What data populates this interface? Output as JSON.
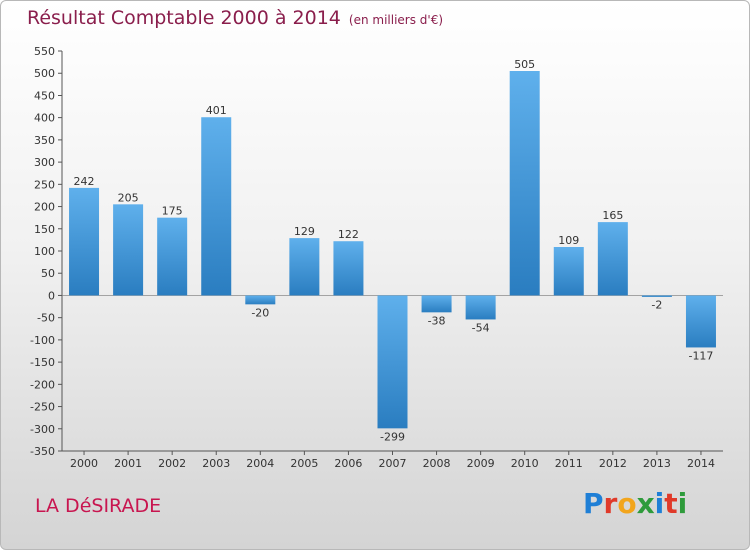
{
  "header": {
    "title": "Résultat Comptable 2000 à 2014",
    "subtitle": "(en milliers d'€)"
  },
  "footer": {
    "commune": "LA DéSIRADE",
    "logo_text": "Proxiti",
    "logo_colors": [
      "#1f7fd6",
      "#e03a2a",
      "#f2a51c",
      "#2e9b3b",
      "#1f7fd6",
      "#e03a2a",
      "#2e9b3b"
    ]
  },
  "chart_data": {
    "type": "bar",
    "title": "Résultat Comptable 2000 à 2014",
    "subtitle": "(en milliers d'€)",
    "xlabel": "",
    "ylabel": "",
    "categories": [
      "2000",
      "2001",
      "2002",
      "2003",
      "2004",
      "2005",
      "2006",
      "2007",
      "2008",
      "2009",
      "2010",
      "2011",
      "2012",
      "2013",
      "2014"
    ],
    "values": [
      242,
      205,
      175,
      401,
      -20,
      129,
      122,
      -299,
      -38,
      -54,
      505,
      109,
      165,
      -2,
      -117
    ],
    "ylim": [
      -350,
      550
    ],
    "yticks": [
      550,
      500,
      450,
      400,
      350,
      300,
      250,
      200,
      150,
      100,
      50,
      0,
      -50,
      -100,
      -150,
      -200,
      -250,
      -300,
      -350
    ],
    "grid": false,
    "bar_color_light": "#5fb0ec",
    "bar_color_dark": "#2a7dc0"
  }
}
